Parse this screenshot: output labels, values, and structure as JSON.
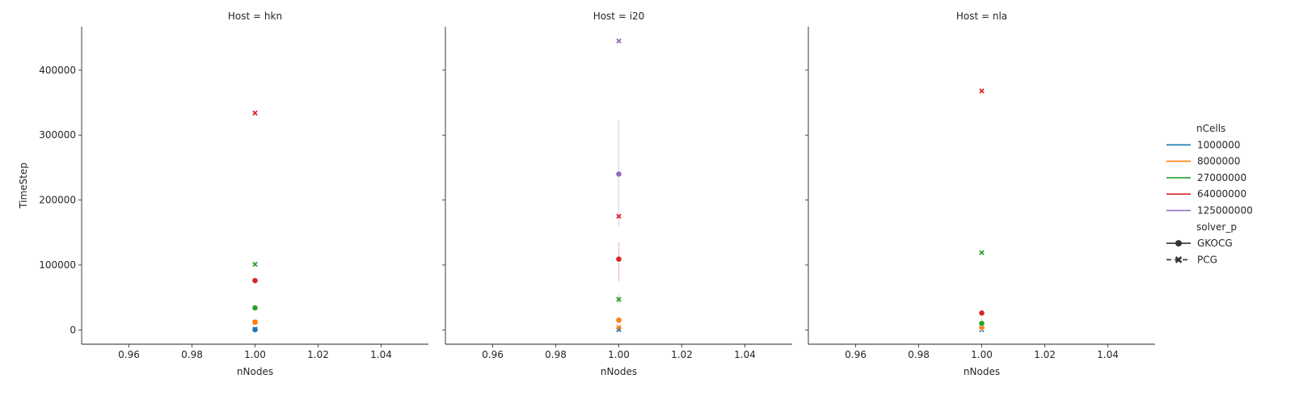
{
  "chart_data": {
    "type": "scatter",
    "facet_variable": "Host",
    "xlabel": "nNodes",
    "ylabel": "TimeStep",
    "xlim": [
      0.945,
      1.055
    ],
    "ylim": [
      -22000,
      467000
    ],
    "x_ticks": [
      "0.96",
      "0.98",
      "1.00",
      "1.02",
      "1.04"
    ],
    "y_ticks": [
      "0",
      "100000",
      "200000",
      "300000",
      "400000"
    ],
    "grid": false,
    "legend": {
      "placement": "right",
      "hue_title": "nCells",
      "hue_items": [
        {
          "label": "1000000",
          "color": "#1f77b4"
        },
        {
          "label": "8000000",
          "color": "#ff7f0e"
        },
        {
          "label": "27000000",
          "color": "#2ca02c"
        },
        {
          "label": "64000000",
          "color": "#d62728"
        },
        {
          "label": "125000000",
          "color": "#9467bd"
        }
      ],
      "style_title": "solver_p",
      "style_items": [
        {
          "label": "GKOCG",
          "marker": "circle",
          "dash": "solid"
        },
        {
          "label": "PCG",
          "marker": "x",
          "dash": "dashed"
        }
      ]
    },
    "panels": [
      {
        "title": "Host = hkn",
        "points": [
          {
            "x": 1.0,
            "y": 400,
            "ncells": "1000000",
            "solver": "GKOCG",
            "color": "#1f77b4"
          },
          {
            "x": 1.0,
            "y": 1200,
            "ncells": "1000000",
            "solver": "PCG",
            "color": "#1f77b4"
          },
          {
            "x": 1.0,
            "y": 12000,
            "ncells": "8000000",
            "solver": "GKOCG",
            "color": "#ff7f0e"
          },
          {
            "x": 1.0,
            "y": 12000,
            "ncells": "8000000",
            "solver": "PCG",
            "color": "#ff7f0e"
          },
          {
            "x": 1.0,
            "y": 34000,
            "ncells": "27000000",
            "solver": "GKOCG",
            "color": "#2ca02c"
          },
          {
            "x": 1.0,
            "y": 101000,
            "ncells": "27000000",
            "solver": "PCG",
            "color": "#2ca02c"
          },
          {
            "x": 1.0,
            "y": 76000,
            "ncells": "64000000",
            "solver": "GKOCG",
            "color": "#d62728"
          },
          {
            "x": 1.0,
            "y": 334000,
            "ncells": "64000000",
            "solver": "PCG",
            "color": "#d62728"
          }
        ],
        "error_bars": []
      },
      {
        "title": "Host = i20",
        "points": [
          {
            "x": 1.0,
            "y": 400,
            "ncells": "1000000",
            "solver": "PCG",
            "color": "#1f77b4"
          },
          {
            "x": 1.0,
            "y": 15000,
            "ncells": "8000000",
            "solver": "GKOCG",
            "color": "#ff7f0e"
          },
          {
            "x": 1.0,
            "y": 4000,
            "ncells": "8000000",
            "solver": "PCG",
            "color": "#ff7f0e"
          },
          {
            "x": 1.0,
            "y": 47000,
            "ncells": "27000000",
            "solver": "PCG",
            "color": "#2ca02c"
          },
          {
            "x": 1.0,
            "y": 109000,
            "ncells": "64000000",
            "solver": "GKOCG",
            "color": "#d62728"
          },
          {
            "x": 1.0,
            "y": 175000,
            "ncells": "64000000",
            "solver": "PCG",
            "color": "#d62728"
          },
          {
            "x": 1.0,
            "y": 240000,
            "ncells": "125000000",
            "solver": "GKOCG",
            "color": "#9467bd"
          },
          {
            "x": 1.0,
            "y": 445000,
            "ncells": "125000000",
            "solver": "PCG",
            "color": "#9467bd"
          }
        ],
        "error_bars": [
          {
            "x": 1.0,
            "low": 160000,
            "high": 322000,
            "color": "#9467bd"
          },
          {
            "x": 1.0,
            "low": 75000,
            "high": 135000,
            "color": "#d62728"
          },
          {
            "x": 1.0,
            "low": 40000,
            "high": 56000,
            "color": "#2ca02c"
          }
        ]
      },
      {
        "title": "Host = nla",
        "points": [
          {
            "x": 1.0,
            "y": 400,
            "ncells": "1000000",
            "solver": "PCG",
            "color": "#1f77b4"
          },
          {
            "x": 1.0,
            "y": 4000,
            "ncells": "8000000",
            "solver": "GKOCG",
            "color": "#ff7f0e"
          },
          {
            "x": 1.0,
            "y": 10000,
            "ncells": "27000000",
            "solver": "GKOCG",
            "color": "#2ca02c"
          },
          {
            "x": 1.0,
            "y": 119000,
            "ncells": "27000000",
            "solver": "PCG",
            "color": "#2ca02c"
          },
          {
            "x": 1.0,
            "y": 26000,
            "ncells": "64000000",
            "solver": "GKOCG",
            "color": "#d62728"
          },
          {
            "x": 1.0,
            "y": 368000,
            "ncells": "64000000",
            "solver": "PCG",
            "color": "#d62728"
          }
        ],
        "error_bars": [
          {
            "x": 1.0,
            "low": 4000,
            "high": 18000,
            "color": "#2ca02c"
          }
        ]
      }
    ]
  }
}
